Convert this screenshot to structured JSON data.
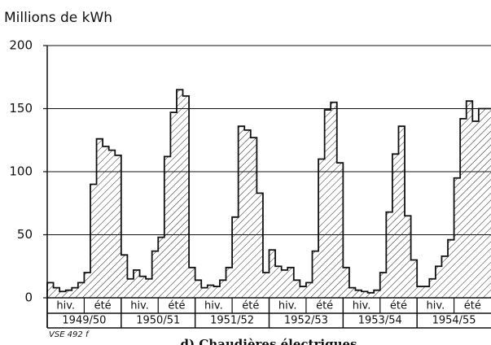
{
  "chart_data": {
    "type": "bar",
    "title": "Millions de kWh",
    "categories": [
      null,
      null,
      null,
      null,
      null,
      null,
      null,
      null,
      null,
      null,
      null,
      null,
      null,
      null,
      null,
      null,
      null,
      null,
      null,
      null,
      null,
      null,
      null,
      null,
      null,
      null,
      null,
      null,
      null,
      null,
      null,
      null,
      null,
      null,
      null,
      null,
      null,
      null,
      null,
      null,
      null,
      null,
      null,
      null,
      null,
      null,
      null,
      null,
      null,
      null,
      null,
      null,
      null,
      null,
      null,
      null,
      null,
      null,
      null,
      null,
      null,
      null,
      null,
      null,
      null,
      null,
      null,
      null,
      null,
      null,
      null,
      null
    ],
    "values": [
      12,
      8,
      5,
      6,
      8,
      12,
      20,
      90,
      126,
      120,
      117,
      113,
      34,
      15,
      22,
      17,
      15,
      37,
      48,
      112,
      147,
      165,
      160,
      24,
      14,
      8,
      10,
      9,
      14,
      24,
      64,
      136,
      133,
      127,
      83,
      20,
      38,
      25,
      22,
      24,
      14,
      9,
      12,
      37,
      110,
      149,
      155,
      107,
      24,
      8,
      6,
      5,
      4,
      6,
      20,
      68,
      114,
      136,
      65,
      30,
      9,
      9,
      15,
      25,
      33,
      46,
      95,
      142,
      156,
      140,
      150,
      150
    ],
    "season_labels": [
      "hiv.",
      "été",
      "hiv.",
      "été",
      "hiv.",
      "été",
      "hiv.",
      "été",
      "hiv.",
      "été",
      "hiv.",
      "été"
    ],
    "years": [
      "1949/50",
      "1950/51",
      "1951/52",
      "1952/53",
      "1953/54",
      "1954/55"
    ],
    "note": "VSE 492 f",
    "caption": "d) Chaudières électriques",
    "ylim": [
      0,
      200
    ],
    "yticks": [
      0,
      50,
      100,
      150,
      200
    ],
    "grid": true,
    "color": "#111111"
  }
}
